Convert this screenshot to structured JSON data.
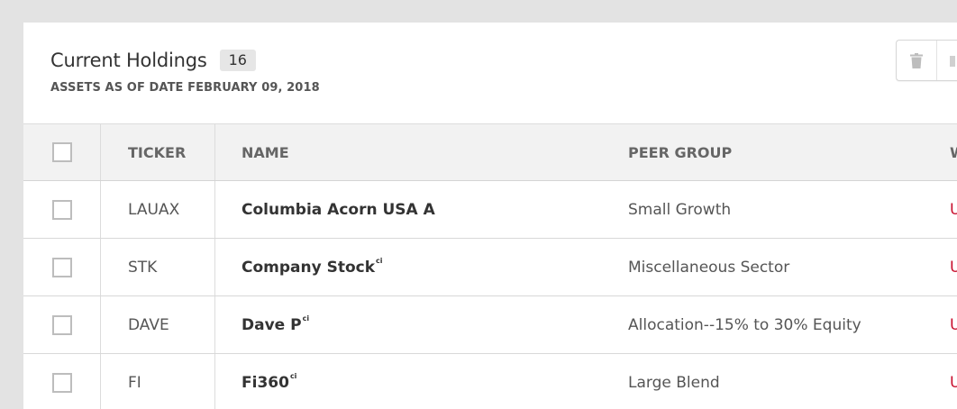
{
  "header": {
    "title": "Current Holdings",
    "count": "16",
    "subtitle": "ASSETS AS OF DATE FEBRUARY 09, 2018"
  },
  "toolbar": {
    "buttons": [
      {
        "icon": "trash-icon"
      },
      {
        "icon": "compare-icon"
      }
    ]
  },
  "table": {
    "columns": [
      "TICKER",
      "NAME",
      "PEER GROUP",
      "W"
    ],
    "rows": [
      {
        "ticker": "LAUAX",
        "name": "Columbia Acorn USA A",
        "badge": "",
        "peer": "Small Growth",
        "w": "U"
      },
      {
        "ticker": "STK",
        "name": "Company Stock",
        "badge": "ci",
        "peer": "Miscellaneous Sector",
        "w": "U"
      },
      {
        "ticker": "DAVE",
        "name": "Dave P",
        "badge": "ci",
        "peer": "Allocation--15% to 30% Equity",
        "w": "U"
      },
      {
        "ticker": "FI",
        "name": "Fi360",
        "badge": "ci",
        "peer": "Large Blend",
        "w": "U"
      }
    ]
  },
  "colors": {
    "accent_red": "#c8102e",
    "header_bg": "#f2f2f2"
  }
}
